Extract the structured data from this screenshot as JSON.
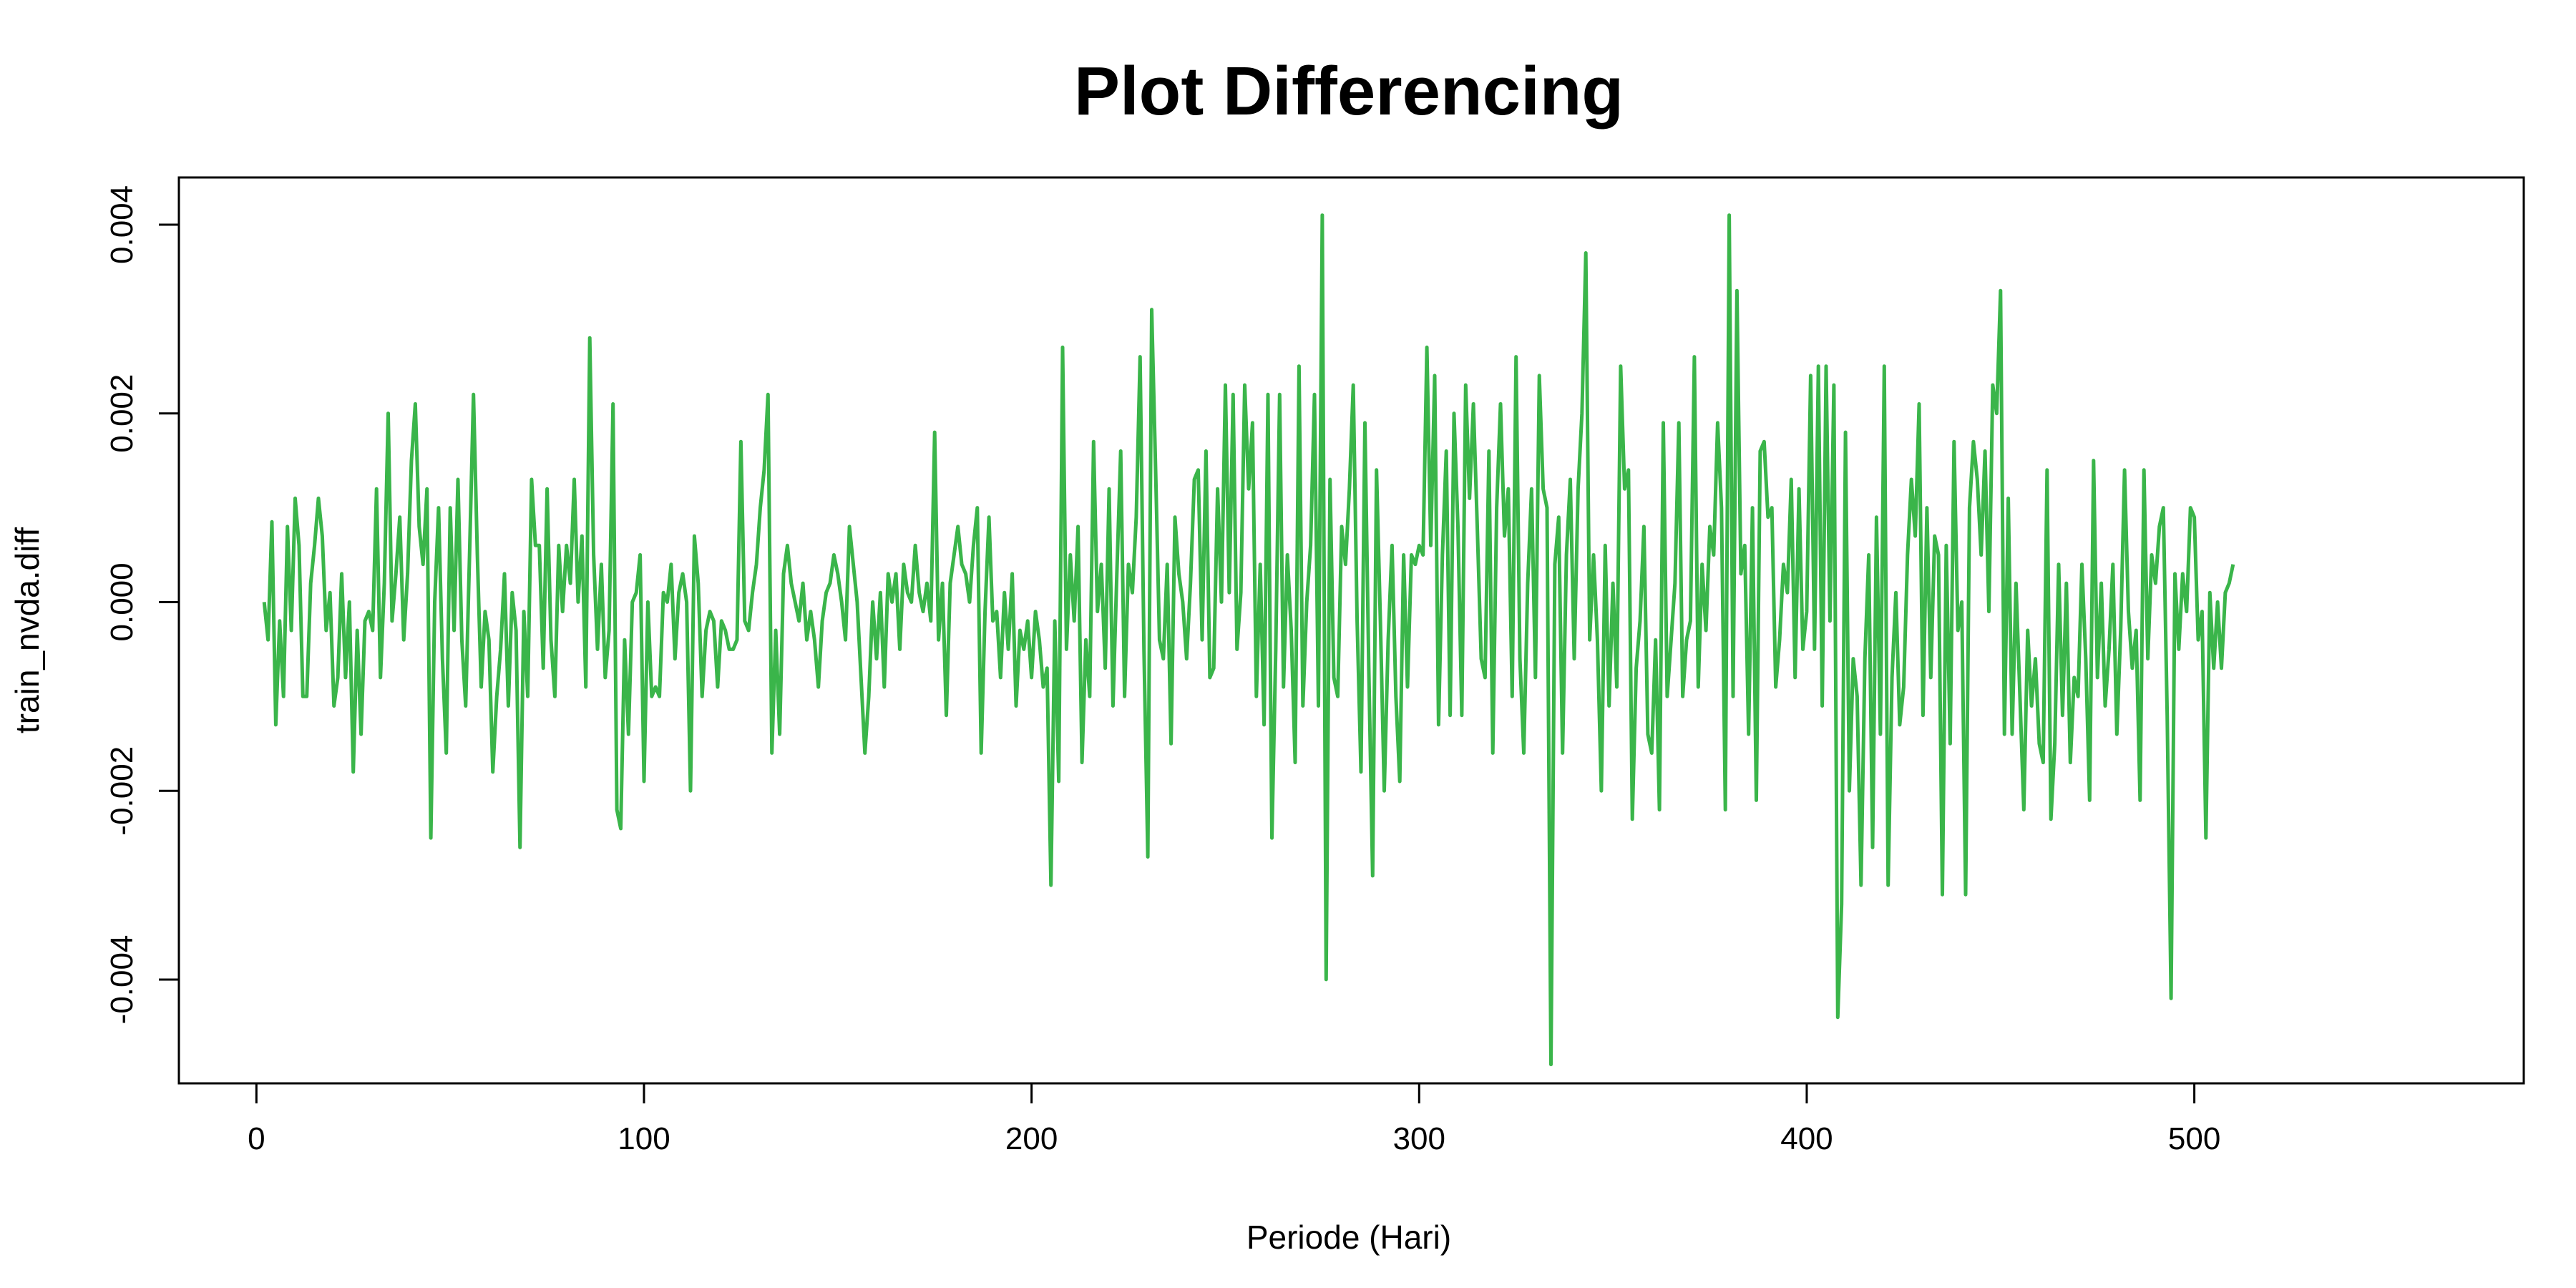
{
  "chart_data": {
    "type": "line",
    "title": "Plot Differencing",
    "xlabel": "Periode (Hari)",
    "ylabel": "train_nvda.diff",
    "xlim": [
      -20,
      585
    ],
    "ylim": [
      -0.0051,
      0.0045
    ],
    "x_ticks": [
      0,
      100,
      200,
      300,
      400,
      500
    ],
    "x_tick_labels": [
      "0",
      "100",
      "200",
      "300",
      "400",
      "500"
    ],
    "y_ticks": [
      -0.004,
      -0.002,
      0.0,
      0.002,
      0.004
    ],
    "y_tick_labels": [
      "-0.004",
      "-0.002",
      "0.000",
      "0.002",
      "0.004"
    ],
    "grid": false,
    "line_color": "#3ab54a",
    "series": [
      {
        "x_start": 2,
        "values": [
          0.0,
          -0.0004,
          0.00085,
          -0.0013,
          -0.0002,
          -0.001,
          0.0008,
          -0.0003,
          0.0011,
          0.0006,
          -0.001,
          -0.001,
          0.0002,
          0.0006,
          0.0011,
          0.0007,
          -0.0003,
          0.0001,
          -0.0011,
          -0.0008,
          0.0003,
          -0.0008,
          0.0,
          -0.0018,
          -0.0003,
          -0.0014,
          -0.0002,
          -0.0001,
          -0.0003,
          0.0012,
          -0.0008,
          0.0002,
          0.002,
          -0.0002,
          0.0003,
          0.0009,
          -0.0004,
          0.0003,
          0.0015,
          0.0021,
          0.0008,
          0.0004,
          0.0012,
          -0.0025,
          0.0,
          0.001,
          -0.0006,
          -0.0016,
          0.001,
          -0.0003,
          0.0013,
          -0.0004,
          -0.0011,
          0.0005,
          0.0022,
          0.0005,
          -0.0009,
          -0.0001,
          -0.0004,
          -0.0018,
          -0.001,
          -0.0005,
          0.0003,
          -0.0011,
          0.0001,
          -0.0003,
          -0.0026,
          -0.0001,
          -0.001,
          0.0013,
          0.0006,
          0.0006,
          -0.0007,
          0.0012,
          -0.0004,
          -0.001,
          0.0006,
          -0.0001,
          0.0006,
          0.0002,
          0.0013,
          0.0,
          0.0007,
          -0.0009,
          0.0028,
          0.0005,
          -0.0005,
          0.0004,
          -0.0008,
          -0.0003,
          0.0021,
          -0.0022,
          -0.0024,
          -0.0004,
          -0.0014,
          0.0,
          0.0001,
          0.0005,
          -0.0019,
          0.0,
          -0.001,
          -0.0009,
          -0.001,
          0.0001,
          0.0,
          0.0004,
          -0.0006,
          0.0001,
          0.0003,
          0.0,
          -0.002,
          0.0007,
          0.0002,
          -0.001,
          -0.0003,
          -0.0001,
          -0.0002,
          -0.0009,
          -0.0002,
          -0.0003,
          -0.0005,
          -0.0005,
          -0.0004,
          0.0017,
          -0.0002,
          -0.0003,
          0.0001,
          0.0004,
          0.001,
          0.0014,
          0.0022,
          -0.0016,
          -0.0003,
          -0.0014,
          0.0003,
          0.0006,
          0.0002,
          0.0,
          -0.0002,
          0.0002,
          -0.0004,
          -0.0001,
          -0.0004,
          -0.0009,
          -0.0002,
          0.0001,
          0.0002,
          0.0005,
          0.0003,
          0.0,
          -0.0004,
          0.0008,
          0.0004,
          0.0,
          -0.0008,
          -0.0016,
          -0.001,
          0.0,
          -0.0006,
          0.0001,
          -0.0009,
          0.0003,
          0.0,
          0.0003,
          -0.0005,
          0.0004,
          0.0001,
          0.0,
          0.0006,
          0.0001,
          -0.0001,
          0.0002,
          -0.0002,
          0.0018,
          -0.0004,
          0.0002,
          -0.0012,
          0.0002,
          0.0005,
          0.0008,
          0.0004,
          0.0003,
          0.0,
          0.0006,
          0.001,
          -0.0016,
          -0.0001,
          0.0009,
          -0.0002,
          -0.0001,
          -0.0008,
          0.0001,
          -0.0005,
          0.0003,
          -0.0011,
          -0.0003,
          -0.0005,
          -0.0002,
          -0.0008,
          -0.0001,
          -0.0004,
          -0.0009,
          -0.0007,
          -0.003,
          -0.0002,
          -0.0019,
          0.0027,
          -0.0005,
          0.0005,
          -0.0002,
          0.0008,
          -0.0017,
          -0.0004,
          -0.001,
          0.0017,
          -0.0001,
          0.0004,
          -0.0007,
          0.0012,
          -0.0011,
          0.0003,
          0.0016,
          -0.001,
          0.0004,
          0.0001,
          0.0009,
          0.0026,
          -0.0005,
          -0.0027,
          0.0031,
          0.0014,
          -0.0004,
          -0.0006,
          0.0004,
          -0.0015,
          0.0009,
          0.0003,
          0.0,
          -0.0006,
          0.0002,
          0.0013,
          0.0014,
          -0.0004,
          0.0016,
          -0.0008,
          -0.0007,
          0.0012,
          0.0,
          0.0023,
          0.0001,
          0.0022,
          -0.0005,
          0.0001,
          0.0023,
          0.0012,
          0.0019,
          -0.001,
          0.0004,
          -0.0013,
          0.0022,
          -0.0025,
          -0.0005,
          0.0022,
          -0.0009,
          0.0005,
          -0.0003,
          -0.0017,
          0.0025,
          -0.0011,
          0.0,
          0.0006,
          0.0022,
          -0.0011,
          0.0041,
          -0.004,
          0.0013,
          -0.0008,
          -0.001,
          0.0008,
          0.0004,
          0.0012,
          0.0023,
          -0.0002,
          -0.0018,
          0.0019,
          -0.0007,
          -0.0029,
          0.0014,
          -0.0002,
          -0.002,
          -0.0004,
          0.0006,
          -0.001,
          -0.0019,
          0.0005,
          -0.0009,
          0.0005,
          0.0004,
          0.0006,
          0.0005,
          0.0027,
          0.0006,
          0.0024,
          -0.0013,
          0.0005,
          0.0016,
          -0.0012,
          0.002,
          0.0008,
          -0.0012,
          0.0023,
          0.0011,
          0.0021,
          0.0008,
          -0.0006,
          -0.0008,
          0.0016,
          -0.0016,
          0.001,
          0.0021,
          0.0007,
          0.0012,
          -0.001,
          0.0026,
          -0.0006,
          -0.0016,
          0.0002,
          0.0012,
          -0.0008,
          0.0024,
          0.0012,
          0.001,
          -0.0049,
          0.0004,
          0.0009,
          -0.0016,
          0.0005,
          0.0013,
          -0.0006,
          0.0012,
          0.002,
          0.0037,
          -0.0004,
          0.0005,
          -0.0004,
          -0.002,
          0.0006,
          -0.0011,
          0.0002,
          -0.0009,
          0.0025,
          0.0012,
          0.0014,
          -0.0023,
          -0.0007,
          -0.0002,
          0.0008,
          -0.0014,
          -0.0016,
          -0.0004,
          -0.0022,
          0.0019,
          -0.001,
          -0.0004,
          0.0002,
          0.0019,
          -0.001,
          -0.0004,
          -0.0002,
          0.0026,
          -0.0009,
          0.0004,
          -0.0003,
          0.0008,
          0.0005,
          0.0019,
          0.001,
          -0.0022,
          0.0041,
          -0.001,
          0.0033,
          0.0003,
          0.0006,
          -0.0014,
          0.001,
          -0.0021,
          0.0016,
          0.0017,
          0.0009,
          0.001,
          -0.0009,
          -0.0004,
          0.0004,
          0.0001,
          0.0013,
          -0.0008,
          0.0012,
          -0.0005,
          -0.0001,
          0.0024,
          -0.0005,
          0.0025,
          -0.0011,
          0.0025,
          -0.0002,
          0.0023,
          -0.0044,
          -0.0032,
          0.0018,
          -0.002,
          -0.0006,
          -0.001,
          -0.003,
          -0.0006,
          0.0005,
          -0.0026,
          0.0009,
          -0.0014,
          0.0025,
          -0.003,
          -0.0008,
          0.0001,
          -0.0013,
          -0.0009,
          0.0005,
          0.0013,
          0.0007,
          0.0021,
          -0.0012,
          0.001,
          -0.0008,
          0.0007,
          0.0005,
          -0.0031,
          0.0006,
          -0.0015,
          0.0017,
          -0.0003,
          0.0,
          -0.0031,
          0.001,
          0.0017,
          0.0013,
          0.0005,
          0.0016,
          -0.0001,
          0.0023,
          0.002,
          0.0033,
          -0.0014,
          0.0011,
          -0.0014,
          0.0002,
          -0.001,
          -0.0022,
          -0.0003,
          -0.0011,
          -0.0006,
          -0.0015,
          -0.0017,
          0.0014,
          -0.0023,
          -0.0015,
          0.0004,
          -0.0012,
          0.0002,
          -0.0017,
          -0.0008,
          -0.001,
          0.0004,
          -0.0006,
          -0.0021,
          0.0015,
          -0.0008,
          0.0002,
          -0.0011,
          -0.0005,
          0.0004,
          -0.0014,
          -0.0003,
          0.0014,
          -0.0001,
          -0.0007,
          -0.0003,
          -0.0021,
          0.0014,
          -0.0006,
          0.0005,
          0.0002,
          0.0008,
          0.001,
          -0.0012,
          -0.0042,
          0.0003,
          -0.0005,
          0.0003,
          -0.0001,
          0.001,
          0.0009,
          -0.0004,
          -0.0001,
          -0.0025,
          0.0001,
          -0.0007,
          0.0,
          -0.0007,
          0.0001,
          0.0002,
          0.0004
        ]
      }
    ]
  }
}
